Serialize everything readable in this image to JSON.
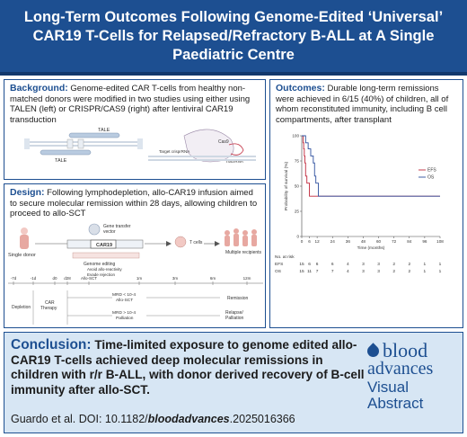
{
  "header": {
    "title_line1": "Long-Term Outcomes Following Genome-Edited ‘Universal’",
    "title_line2": "CAR19 T-Cells for Relapsed/Refractory B-ALL at A Single",
    "title_line3": "Paediatric Centre"
  },
  "background": {
    "label": "Background:",
    "text": "Genome-edited CAR T-cells from healthy non-matched donors were modified in two studies using either using TALEN (left) or CRISPR/CAS9 (right) after lentiviral CAR19 transduction",
    "figure_labels": {
      "tale_top": "TALE",
      "tale_bottom": "TALE",
      "cas9": "Cas9",
      "target_crisprrna": "Target crisprRNA",
      "tracrrna": "TracrRNA"
    }
  },
  "outcomes": {
    "label": "Outcomes:",
    "text": "Durable long-term remissions were achieved in 6/15 (40%) of children, all of whom reconstituted immunity, including B cell compartments, after transplant"
  },
  "design": {
    "label": "Design:",
    "text": "Following lymphodepletion, allo-CAR19 infusion aimed to secure molecular remission within 28 days, allowing children to proceed to allo-SCT",
    "figure_labels": {
      "single_donor": "Single donor",
      "gene_transfer": "Gene transfer",
      "vector": "vector",
      "car19": "CAR19",
      "t_cells": "T cells",
      "multiple_recipients": "Multiple recipients",
      "genome_editing": "Genome editing",
      "avoid": "Avoid allo-reactivity",
      "evade": "Evade rejection",
      "timeline": [
        "-7d",
        "-1d",
        "d0",
        "d28",
        "Allo-SCT",
        "1m",
        "3m",
        "6m",
        "12m"
      ],
      "depletion": "Depletion",
      "car_therapy": "CAR",
      "car_therapy2": "Therapy",
      "mrd_low": "MRD < 10-4",
      "allo_sct": "Allo-SCT",
      "mrd_high": "MRD > 10-4",
      "palliation": "Palliation",
      "remission": "Remission",
      "relapse": "Relapse/",
      "relapse2": "Palliation"
    }
  },
  "conclusion": {
    "label": "Conclusion:",
    "text": "Time-limited exposure to genome edited allo-CAR19 T-cells achieved deep molecular remissions in children with r/r B-ALL, with donor derived recovery of B-cell immunity after allo-SCT.",
    "citation_prefix": "Guardo et al. DOI: 10.1182/",
    "citation_suffix": "bloodadvances",
    "citation_tail": ".2025016366"
  },
  "logo": {
    "line1": "blood",
    "line2": "advances",
    "line3": "Visual",
    "line4": "Abstract"
  },
  "colors": {
    "navy": "#1d4f91",
    "efs": "#c0273a",
    "os": "#2d4f9e"
  },
  "chart_data": {
    "type": "line",
    "step": true,
    "xlabel": "Time (months)",
    "ylabel": "Probability of survival (%)",
    "xlim": [
      0,
      108
    ],
    "ylim": [
      0,
      100
    ],
    "xticks": [
      0,
      6,
      12,
      24,
      36,
      48,
      60,
      72,
      84,
      96,
      108
    ],
    "yticks": [
      0,
      25,
      50,
      75,
      100
    ],
    "legend_position": "right",
    "series": [
      {
        "name": "EFS",
        "x": [
          0,
          1,
          1.5,
          2,
          2.5,
          3,
          4,
          6,
          108
        ],
        "y": [
          100,
          93,
          87,
          80,
          73,
          60,
          53,
          40,
          40
        ]
      },
      {
        "name": "OS",
        "x": [
          0,
          3,
          5,
          7,
          9,
          10,
          11,
          13,
          108
        ],
        "y": [
          100,
          93,
          87,
          80,
          73,
          60,
          53,
          40,
          40
        ]
      }
    ],
    "at_risk": {
      "label": "No. at risk",
      "times": [
        0,
        6,
        12,
        24,
        36,
        48,
        60,
        72,
        84,
        96,
        108
      ],
      "rows": [
        {
          "name": "EFS",
          "values": [
            15,
            6,
            6,
            6,
            4,
            3,
            3,
            2,
            2,
            1,
            1
          ]
        },
        {
          "name": "OS",
          "values": [
            15,
            11,
            7,
            7,
            4,
            3,
            3,
            2,
            2,
            1,
            1
          ]
        }
      ]
    }
  }
}
